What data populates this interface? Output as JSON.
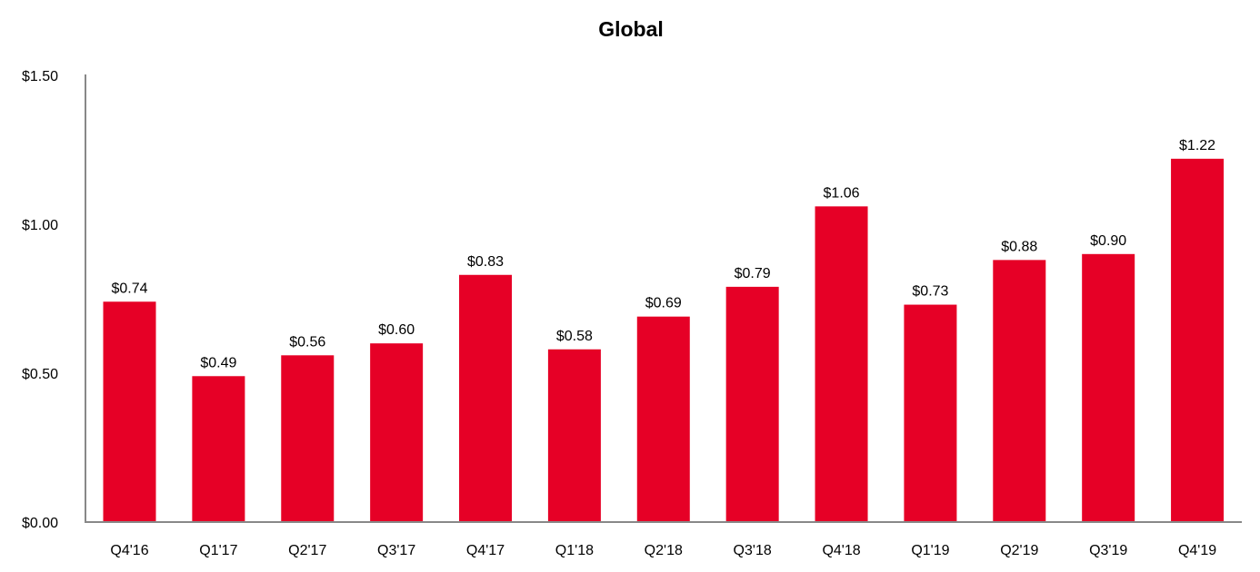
{
  "chart_data": {
    "type": "bar",
    "title": "Global",
    "xlabel": "",
    "ylabel": "",
    "categories": [
      "Q4'16",
      "Q1'17",
      "Q2'17",
      "Q3'17",
      "Q4'17",
      "Q1'18",
      "Q2'18",
      "Q3'18",
      "Q4'18",
      "Q1'19",
      "Q2'19",
      "Q3'19",
      "Q4'19"
    ],
    "values": [
      0.74,
      0.49,
      0.56,
      0.6,
      0.83,
      0.58,
      0.69,
      0.79,
      1.06,
      0.73,
      0.88,
      0.9,
      1.22
    ],
    "data_labels": [
      "$0.74",
      "$0.49",
      "$0.56",
      "$0.60",
      "$0.83",
      "$0.58",
      "$0.69",
      "$0.79",
      "$1.06",
      "$0.73",
      "$0.88",
      "$0.90",
      "$1.22"
    ],
    "ylim": [
      0,
      1.5
    ],
    "yticks": [
      0,
      0.5,
      1.0,
      1.5
    ],
    "ytick_labels": [
      "$0.00",
      "$0.50",
      "$1.00",
      "$1.50"
    ],
    "grid": false,
    "legend": "none",
    "bar_color": "#e60026",
    "axis_color": "#888888"
  }
}
